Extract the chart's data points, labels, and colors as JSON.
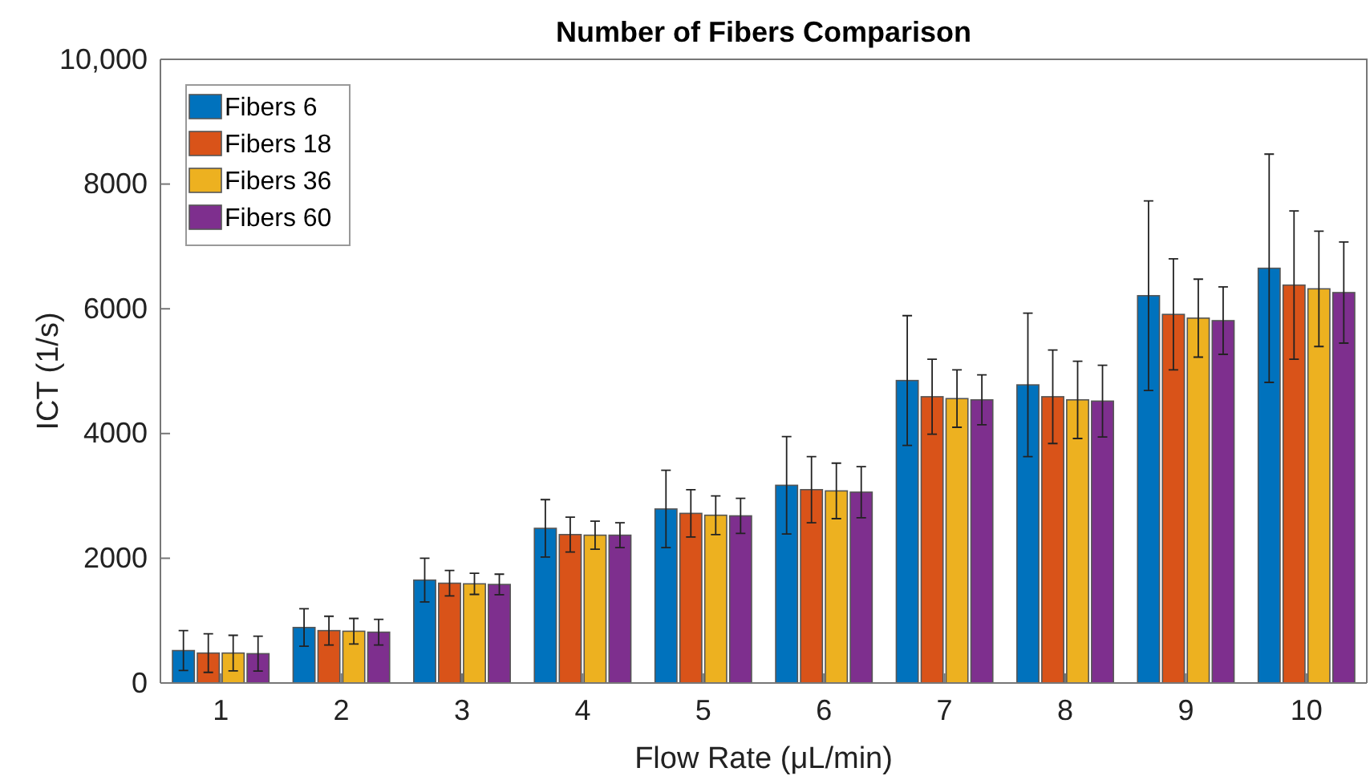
{
  "chart_data": {
    "type": "bar",
    "title": "Number of Fibers Comparison",
    "xlabel": "Flow Rate (μL/min)",
    "ylabel": "ICT (1/s)",
    "categories": [
      "1",
      "2",
      "3",
      "4",
      "5",
      "6",
      "7",
      "8",
      "9",
      "10"
    ],
    "ylim": [
      0,
      10000
    ],
    "yticks": [
      0,
      2000,
      4000,
      6000,
      8000,
      {
        "value": 10000,
        "label": "10,000"
      }
    ],
    "legend": "top left",
    "grid": false,
    "series": [
      {
        "name": "Fibers 6",
        "color": "#0072bd",
        "values": [
          520,
          890,
          1650,
          2480,
          2790,
          3170,
          4850,
          4780,
          6210,
          6650
        ],
        "errors": [
          320,
          300,
          350,
          460,
          620,
          780,
          1040,
          1150,
          1520,
          1830
        ]
      },
      {
        "name": "Fibers 18",
        "color": "#d95319",
        "values": [
          480,
          840,
          1600,
          2380,
          2720,
          3100,
          4590,
          4590,
          5910,
          6380
        ],
        "errors": [
          310,
          230,
          205,
          280,
          380,
          530,
          600,
          750,
          890,
          1190
        ]
      },
      {
        "name": "Fibers 36",
        "color": "#edb120",
        "values": [
          480,
          830,
          1590,
          2370,
          2690,
          3080,
          4560,
          4540,
          5850,
          6320
        ],
        "errors": [
          285,
          205,
          170,
          225,
          310,
          445,
          460,
          620,
          625,
          925
        ]
      },
      {
        "name": "Fibers 60",
        "color": "#7e2f8e",
        "values": [
          470,
          815,
          1580,
          2370,
          2680,
          3060,
          4540,
          4520,
          5810,
          6260
        ],
        "errors": [
          280,
          205,
          165,
          200,
          280,
          410,
          400,
          575,
          540,
          810
        ]
      }
    ]
  }
}
